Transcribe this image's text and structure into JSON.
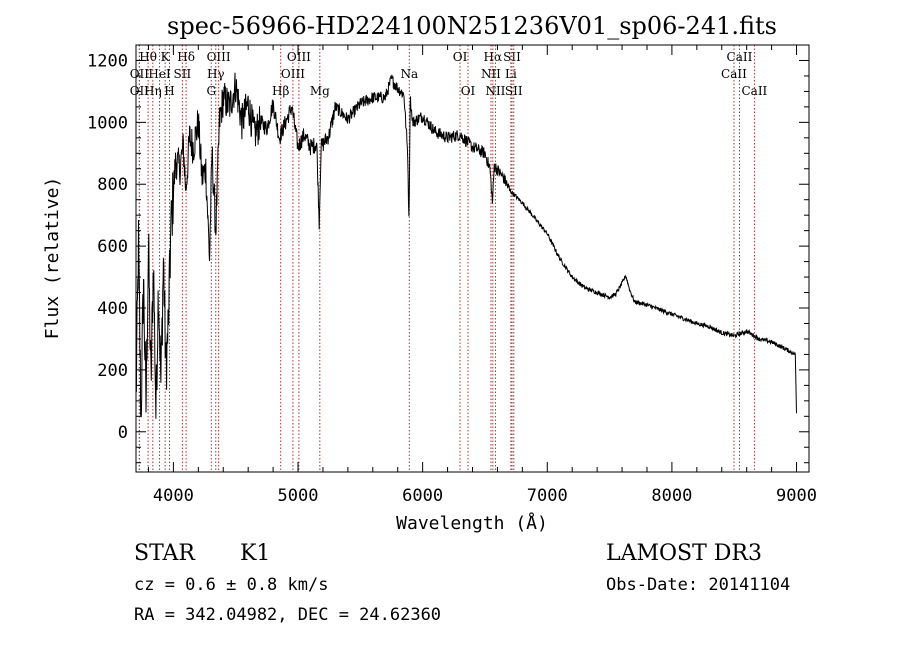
{
  "chart_data": {
    "type": "line",
    "title": "spec-56966-HD224100N251236V01_sp06-241.fits",
    "xlabel": "Wavelength (Å)",
    "ylabel": "Flux (relative)",
    "xlim": [
      3700,
      9100
    ],
    "ylim": [
      -130,
      1250
    ],
    "xticks": [
      4000,
      5000,
      6000,
      7000,
      8000,
      9000
    ],
    "yticks": [
      0,
      200,
      400,
      600,
      800,
      1000,
      1200
    ],
    "grid": false,
    "line_color": "#000000",
    "marker_color": "#b03030",
    "series": [
      {
        "name": "flux",
        "anchors": [
          [
            3700,
            100
          ],
          [
            3720,
            600
          ],
          [
            3740,
            40
          ],
          [
            3760,
            500
          ],
          [
            3780,
            80
          ],
          [
            3800,
            600
          ],
          [
            3820,
            150
          ],
          [
            3840,
            550
          ],
          [
            3860,
            60
          ],
          [
            3880,
            480
          ],
          [
            3900,
            150
          ],
          [
            3920,
            560
          ],
          [
            3940,
            200
          ],
          [
            3960,
            350
          ],
          [
            3980,
            650
          ],
          [
            4000,
            780
          ],
          [
            4020,
            880
          ],
          [
            4050,
            850
          ],
          [
            4080,
            920
          ],
          [
            4100,
            780
          ],
          [
            4130,
            950
          ],
          [
            4160,
            920
          ],
          [
            4200,
            1000
          ],
          [
            4230,
            820
          ],
          [
            4260,
            850
          ],
          [
            4290,
            560
          ],
          [
            4310,
            900
          ],
          [
            4340,
            650
          ],
          [
            4370,
            1000
          ],
          [
            4400,
            1080
          ],
          [
            4450,
            1050
          ],
          [
            4500,
            1120
          ],
          [
            4550,
            1000
          ],
          [
            4600,
            1060
          ],
          [
            4650,
            960
          ],
          [
            4700,
            1000
          ],
          [
            4750,
            980
          ],
          [
            4800,
            1060
          ],
          [
            4850,
            950
          ],
          [
            4900,
            1000
          ],
          [
            4950,
            1050
          ],
          [
            5000,
            920
          ],
          [
            5050,
            960
          ],
          [
            5100,
            920
          ],
          [
            5150,
            930
          ],
          [
            5170,
            680
          ],
          [
            5185,
            920
          ],
          [
            5250,
            960
          ],
          [
            5300,
            1050
          ],
          [
            5400,
            1010
          ],
          [
            5500,
            1060
          ],
          [
            5600,
            1080
          ],
          [
            5700,
            1080
          ],
          [
            5750,
            1140
          ],
          [
            5800,
            1110
          ],
          [
            5850,
            1090
          ],
          [
            5880,
            900
          ],
          [
            5890,
            680
          ],
          [
            5900,
            1080
          ],
          [
            5920,
            1000
          ],
          [
            6000,
            1020
          ],
          [
            6100,
            970
          ],
          [
            6200,
            950
          ],
          [
            6300,
            960
          ],
          [
            6400,
            920
          ],
          [
            6500,
            900
          ],
          [
            6540,
            850
          ],
          [
            6560,
            740
          ],
          [
            6575,
            860
          ],
          [
            6650,
            820
          ],
          [
            6700,
            780
          ],
          [
            6800,
            740
          ],
          [
            6900,
            690
          ],
          [
            7000,
            640
          ],
          [
            7100,
            560
          ],
          [
            7200,
            500
          ],
          [
            7300,
            465
          ],
          [
            7400,
            450
          ],
          [
            7500,
            435
          ],
          [
            7550,
            445
          ],
          [
            7600,
            480
          ],
          [
            7630,
            505
          ],
          [
            7660,
            460
          ],
          [
            7700,
            420
          ],
          [
            7800,
            410
          ],
          [
            7900,
            395
          ],
          [
            8000,
            380
          ],
          [
            8100,
            365
          ],
          [
            8200,
            350
          ],
          [
            8300,
            340
          ],
          [
            8400,
            320
          ],
          [
            8500,
            310
          ],
          [
            8600,
            325
          ],
          [
            8700,
            300
          ],
          [
            8800,
            290
          ],
          [
            8900,
            270
          ],
          [
            8990,
            250
          ],
          [
            9000,
            60
          ]
        ]
      }
    ],
    "line_markers": [
      {
        "label": "Hθ",
        "x": 3797,
        "row": 0
      },
      {
        "label": "K",
        "x": 3934,
        "row": 0
      },
      {
        "label": "Hδ",
        "x": 4102,
        "row": 0
      },
      {
        "label": "OIII",
        "x": 4363,
        "row": 0
      },
      {
        "label": "OIII",
        "x": 5007,
        "row": 0
      },
      {
        "label": "OI",
        "x": 6300,
        "row": 0
      },
      {
        "label": "Hα",
        "x": 6563,
        "row": 0
      },
      {
        "label": "SII",
        "x": 6717,
        "row": 0
      },
      {
        "label": "CaII",
        "x": 8542,
        "row": 0
      },
      {
        "label": "OII",
        "x": 3727,
        "row": 1
      },
      {
        "label": "HeI",
        "x": 3889,
        "row": 1
      },
      {
        "label": "SII",
        "x": 4072,
        "row": 1
      },
      {
        "label": "Hγ",
        "x": 4340,
        "row": 1
      },
      {
        "label": "OIII",
        "x": 4959,
        "row": 1
      },
      {
        "label": "Na",
        "x": 5893,
        "row": 1
      },
      {
        "label": "NII",
        "x": 6548,
        "row": 1
      },
      {
        "label": "Li",
        "x": 6708,
        "row": 1
      },
      {
        "label": "CaII",
        "x": 8498,
        "row": 1
      },
      {
        "label": "OII",
        "x": 3727,
        "row": 2
      },
      {
        "label": "Hη",
        "x": 3835,
        "row": 2
      },
      {
        "label": "H",
        "x": 3969,
        "row": 2
      },
      {
        "label": "G",
        "x": 4304,
        "row": 2
      },
      {
        "label": "Hβ",
        "x": 4861,
        "row": 2
      },
      {
        "label": "Mg",
        "x": 5175,
        "row": 2
      },
      {
        "label": "OI",
        "x": 6364,
        "row": 2
      },
      {
        "label": "NII",
        "x": 6584,
        "row": 2
      },
      {
        "label": "SII",
        "x": 6731,
        "row": 2
      },
      {
        "label": "CaII",
        "x": 8662,
        "row": 2
      }
    ],
    "annotations": {
      "object_class": "STAR",
      "subclass": "K1",
      "cz": "cz = 0.6 ± 0.8 km/s",
      "coords": "RA = 342.04982, DEC =  24.62360",
      "survey": "LAMOST DR3",
      "obs_date": "Obs-Date: 20141104"
    }
  }
}
